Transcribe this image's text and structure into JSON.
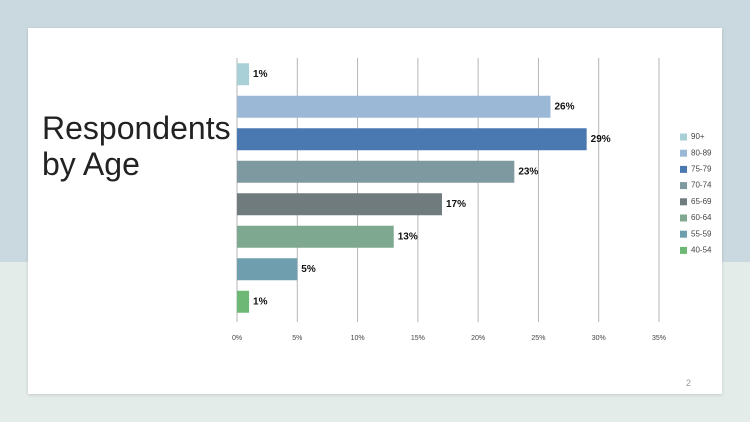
{
  "chart_data": {
    "type": "bar",
    "orientation": "horizontal",
    "title": "Respondents by Age",
    "categories": [
      "90+",
      "80-89",
      "75-79",
      "70-74",
      "65-69",
      "60-64",
      "55-59",
      "40-54"
    ],
    "values": [
      1,
      26,
      29,
      23,
      17,
      13,
      5,
      1
    ],
    "value_labels": [
      "1%",
      "26%",
      "29%",
      "23%",
      "17%",
      "13%",
      "5%",
      "1%"
    ],
    "colors": [
      "#a9cfd7",
      "#9bb8d7",
      "#4a78b0",
      "#7f99a1",
      "#6f7b7d",
      "#7fa890",
      "#6f9fae",
      "#6cb874"
    ],
    "xlim": [
      0,
      35
    ],
    "xticks": [
      {
        "value": 0,
        "label": "0%"
      },
      {
        "value": 5,
        "label": "5%"
      },
      {
        "value": 10,
        "label": "10%"
      },
      {
        "value": 15,
        "label": "15%"
      },
      {
        "value": 20,
        "label": "20%"
      },
      {
        "value": 25,
        "label": "25%"
      },
      {
        "value": 30,
        "label": "30%"
      },
      {
        "value": 35,
        "label": "35%"
      }
    ],
    "grid": true,
    "legend": "right"
  },
  "slide_number": "2"
}
